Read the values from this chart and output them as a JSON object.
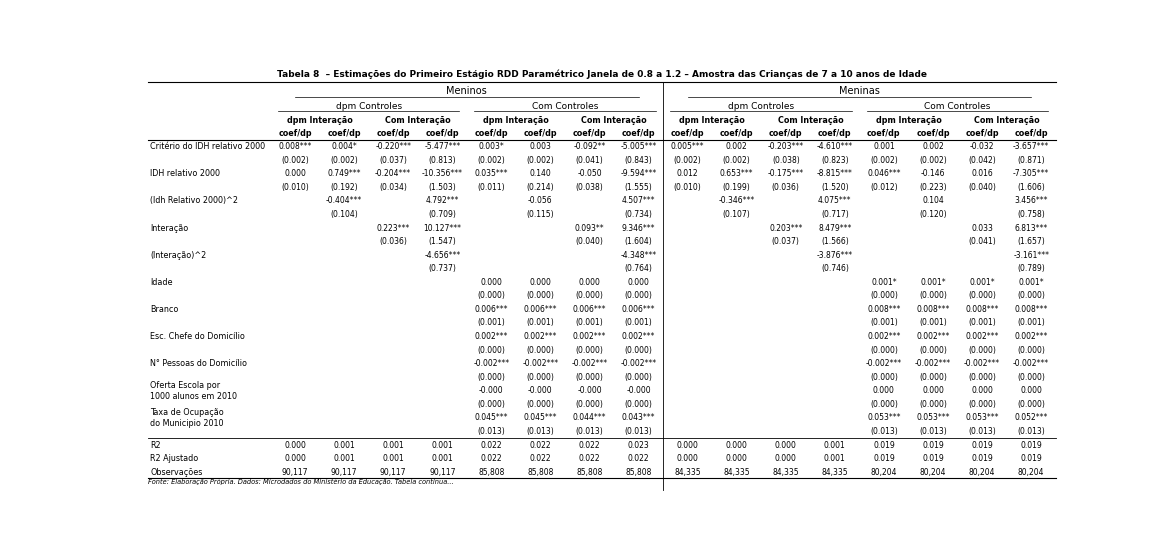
{
  "title": "Tabela 8  – Estimações do Primeiro Estágio RDD Paramétrico Janela de 0.8 a 1.2 – Amostra das Crianças de 7 a 10 anos de Idade",
  "footnote": "Fonte: Elaboração Própria. Dados: Microdados do Ministério da Educação. Tabela continua...",
  "rows": [
    {
      "label": "Critério do IDH relativo 2000",
      "values": [
        "0.008***",
        "0.004*",
        "-0.220***",
        "-5.477***",
        "0.003*",
        "0.003",
        "-0.092**",
        "-5.005***",
        "0.005***",
        "0.002",
        "-0.203***",
        "-4.610***",
        "0.001",
        "0.002",
        "-0.032",
        "-3.657***"
      ]
    },
    {
      "label": "",
      "values": [
        "(0.002)",
        "(0.002)",
        "(0.037)",
        "(0.813)",
        "(0.002)",
        "(0.002)",
        "(0.041)",
        "(0.843)",
        "(0.002)",
        "(0.002)",
        "(0.038)",
        "(0.823)",
        "(0.002)",
        "(0.002)",
        "(0.042)",
        "(0.871)"
      ]
    },
    {
      "label": "IDH relativo 2000",
      "values": [
        "0.000",
        "0.749***",
        "-0.204***",
        "-10.356***",
        "0.035***",
        "0.140",
        "-0.050",
        "-9.594***",
        "0.012",
        "0.653***",
        "-0.175***",
        "-8.815***",
        "0.046***",
        "-0.146",
        "0.016",
        "-7.305***"
      ]
    },
    {
      "label": "",
      "values": [
        "(0.010)",
        "(0.192)",
        "(0.034)",
        "(1.503)",
        "(0.011)",
        "(0.214)",
        "(0.038)",
        "(1.555)",
        "(0.010)",
        "(0.199)",
        "(0.036)",
        "(1.520)",
        "(0.012)",
        "(0.223)",
        "(0.040)",
        "(1.606)"
      ]
    },
    {
      "label": "(Idh Relativo 2000)^2",
      "values": [
        "",
        "-0.404***",
        "",
        "4.792***",
        "",
        "-0.056",
        "",
        "4.507***",
        "",
        "-0.346***",
        "",
        "4.075***",
        "",
        "0.104",
        "",
        "3.456***"
      ]
    },
    {
      "label": "",
      "values": [
        "",
        "(0.104)",
        "",
        "(0.709)",
        "",
        "(0.115)",
        "",
        "(0.734)",
        "",
        "(0.107)",
        "",
        "(0.717)",
        "",
        "(0.120)",
        "",
        "(0.758)"
      ]
    },
    {
      "label": "Interação",
      "values": [
        "",
        "",
        "0.223***",
        "10.127***",
        "",
        "",
        "0.093**",
        "9.346***",
        "",
        "",
        "0.203***",
        "8.479***",
        "",
        "",
        "0.033",
        "6.813***"
      ]
    },
    {
      "label": "",
      "values": [
        "",
        "",
        "(0.036)",
        "(1.547)",
        "",
        "",
        "(0.040)",
        "(1.604)",
        "",
        "",
        "(0.037)",
        "(1.566)",
        "",
        "",
        "(0.041)",
        "(1.657)"
      ]
    },
    {
      "label": "(Interação)^2",
      "values": [
        "",
        "",
        "",
        "-4.656***",
        "",
        "",
        "",
        "-4.348***",
        "",
        "",
        "",
        "-3.876***",
        "",
        "",
        "",
        "-3.161***"
      ]
    },
    {
      "label": "",
      "values": [
        "",
        "",
        "",
        "(0.737)",
        "",
        "",
        "",
        "(0.764)",
        "",
        "",
        "",
        "(0.746)",
        "",
        "",
        "",
        "(0.789)"
      ]
    },
    {
      "label": "Idade",
      "values": [
        "",
        "",
        "",
        "",
        "0.000",
        "0.000",
        "0.000",
        "0.000",
        "",
        "",
        "",
        "",
        "0.001*",
        "0.001*",
        "0.001*",
        "0.001*"
      ]
    },
    {
      "label": "",
      "values": [
        "",
        "",
        "",
        "",
        "(0.000)",
        "(0.000)",
        "(0.000)",
        "(0.000)",
        "",
        "",
        "",
        "",
        "(0.000)",
        "(0.000)",
        "(0.000)",
        "(0.000)"
      ]
    },
    {
      "label": "Branco",
      "values": [
        "",
        "",
        "",
        "",
        "0.006***",
        "0.006***",
        "0.006***",
        "0.006***",
        "",
        "",
        "",
        "",
        "0.008***",
        "0.008***",
        "0.008***",
        "0.008***"
      ]
    },
    {
      "label": "",
      "values": [
        "",
        "",
        "",
        "",
        "(0.001)",
        "(0.001)",
        "(0.001)",
        "(0.001)",
        "",
        "",
        "",
        "",
        "(0.001)",
        "(0.001)",
        "(0.001)",
        "(0.001)"
      ]
    },
    {
      "label": "Esc. Chefe do Domicílio",
      "values": [
        "",
        "",
        "",
        "",
        "0.002***",
        "0.002***",
        "0.002***",
        "0.002***",
        "",
        "",
        "",
        "",
        "0.002***",
        "0.002***",
        "0.002***",
        "0.002***"
      ]
    },
    {
      "label": "",
      "values": [
        "",
        "",
        "",
        "",
        "(0.000)",
        "(0.000)",
        "(0.000)",
        "(0.000)",
        "",
        "",
        "",
        "",
        "(0.000)",
        "(0.000)",
        "(0.000)",
        "(0.000)"
      ]
    },
    {
      "label": "N° Pessoas do Domicílio",
      "values": [
        "",
        "",
        "",
        "",
        "-0.002***",
        "-0.002***",
        "-0.002***",
        "-0.002***",
        "",
        "",
        "",
        "",
        "-0.002***",
        "-0.002***",
        "-0.002***",
        "-0.002***"
      ]
    },
    {
      "label": "",
      "values": [
        "",
        "",
        "",
        "",
        "(0.000)",
        "(0.000)",
        "(0.000)",
        "(0.000)",
        "",
        "",
        "",
        "",
        "(0.000)",
        "(0.000)",
        "(0.000)",
        "(0.000)"
      ]
    },
    {
      "label": "Oferta Escola por\n1000 alunos em 2010",
      "values": [
        "",
        "",
        "",
        "",
        "-0.000",
        "-0.000",
        "-0.000",
        "-0.000",
        "",
        "",
        "",
        "",
        "0.000",
        "0.000",
        "0.000",
        "0.000"
      ]
    },
    {
      "label": "",
      "values": [
        "",
        "",
        "",
        "",
        "(0.000)",
        "(0.000)",
        "(0.000)",
        "(0.000)",
        "",
        "",
        "",
        "",
        "(0.000)",
        "(0.000)",
        "(0.000)",
        "(0.000)"
      ]
    },
    {
      "label": "Taxa de Ocupação\ndo Municipio 2010",
      "values": [
        "",
        "",
        "",
        "",
        "0.045***",
        "0.045***",
        "0.044***",
        "0.043***",
        "",
        "",
        "",
        "",
        "0.053***",
        "0.053***",
        "0.053***",
        "0.052***"
      ]
    },
    {
      "label": "",
      "values": [
        "",
        "",
        "",
        "",
        "(0.013)",
        "(0.013)",
        "(0.013)",
        "(0.013)",
        "",
        "",
        "",
        "",
        "(0.013)",
        "(0.013)",
        "(0.013)",
        "(0.013)"
      ]
    },
    {
      "label": "R2",
      "values": [
        "0.000",
        "0.001",
        "0.001",
        "0.001",
        "0.022",
        "0.022",
        "0.022",
        "0.023",
        "0.000",
        "0.000",
        "0.000",
        "0.001",
        "0.019",
        "0.019",
        "0.019",
        "0.019"
      ],
      "separator_above": true
    },
    {
      "label": "R2 Ajustado",
      "values": [
        "0.000",
        "0.001",
        "0.001",
        "0.001",
        "0.022",
        "0.022",
        "0.022",
        "0.022",
        "0.000",
        "0.000",
        "0.000",
        "0.001",
        "0.019",
        "0.019",
        "0.019",
        "0.019"
      ]
    },
    {
      "label": "Observações",
      "values": [
        "90,117",
        "90,117",
        "90,117",
        "90,117",
        "85,808",
        "85,808",
        "85,808",
        "85,808",
        "84,335",
        "84,335",
        "84,335",
        "84,335",
        "80,204",
        "80,204",
        "80,204",
        "80,204"
      ]
    }
  ]
}
